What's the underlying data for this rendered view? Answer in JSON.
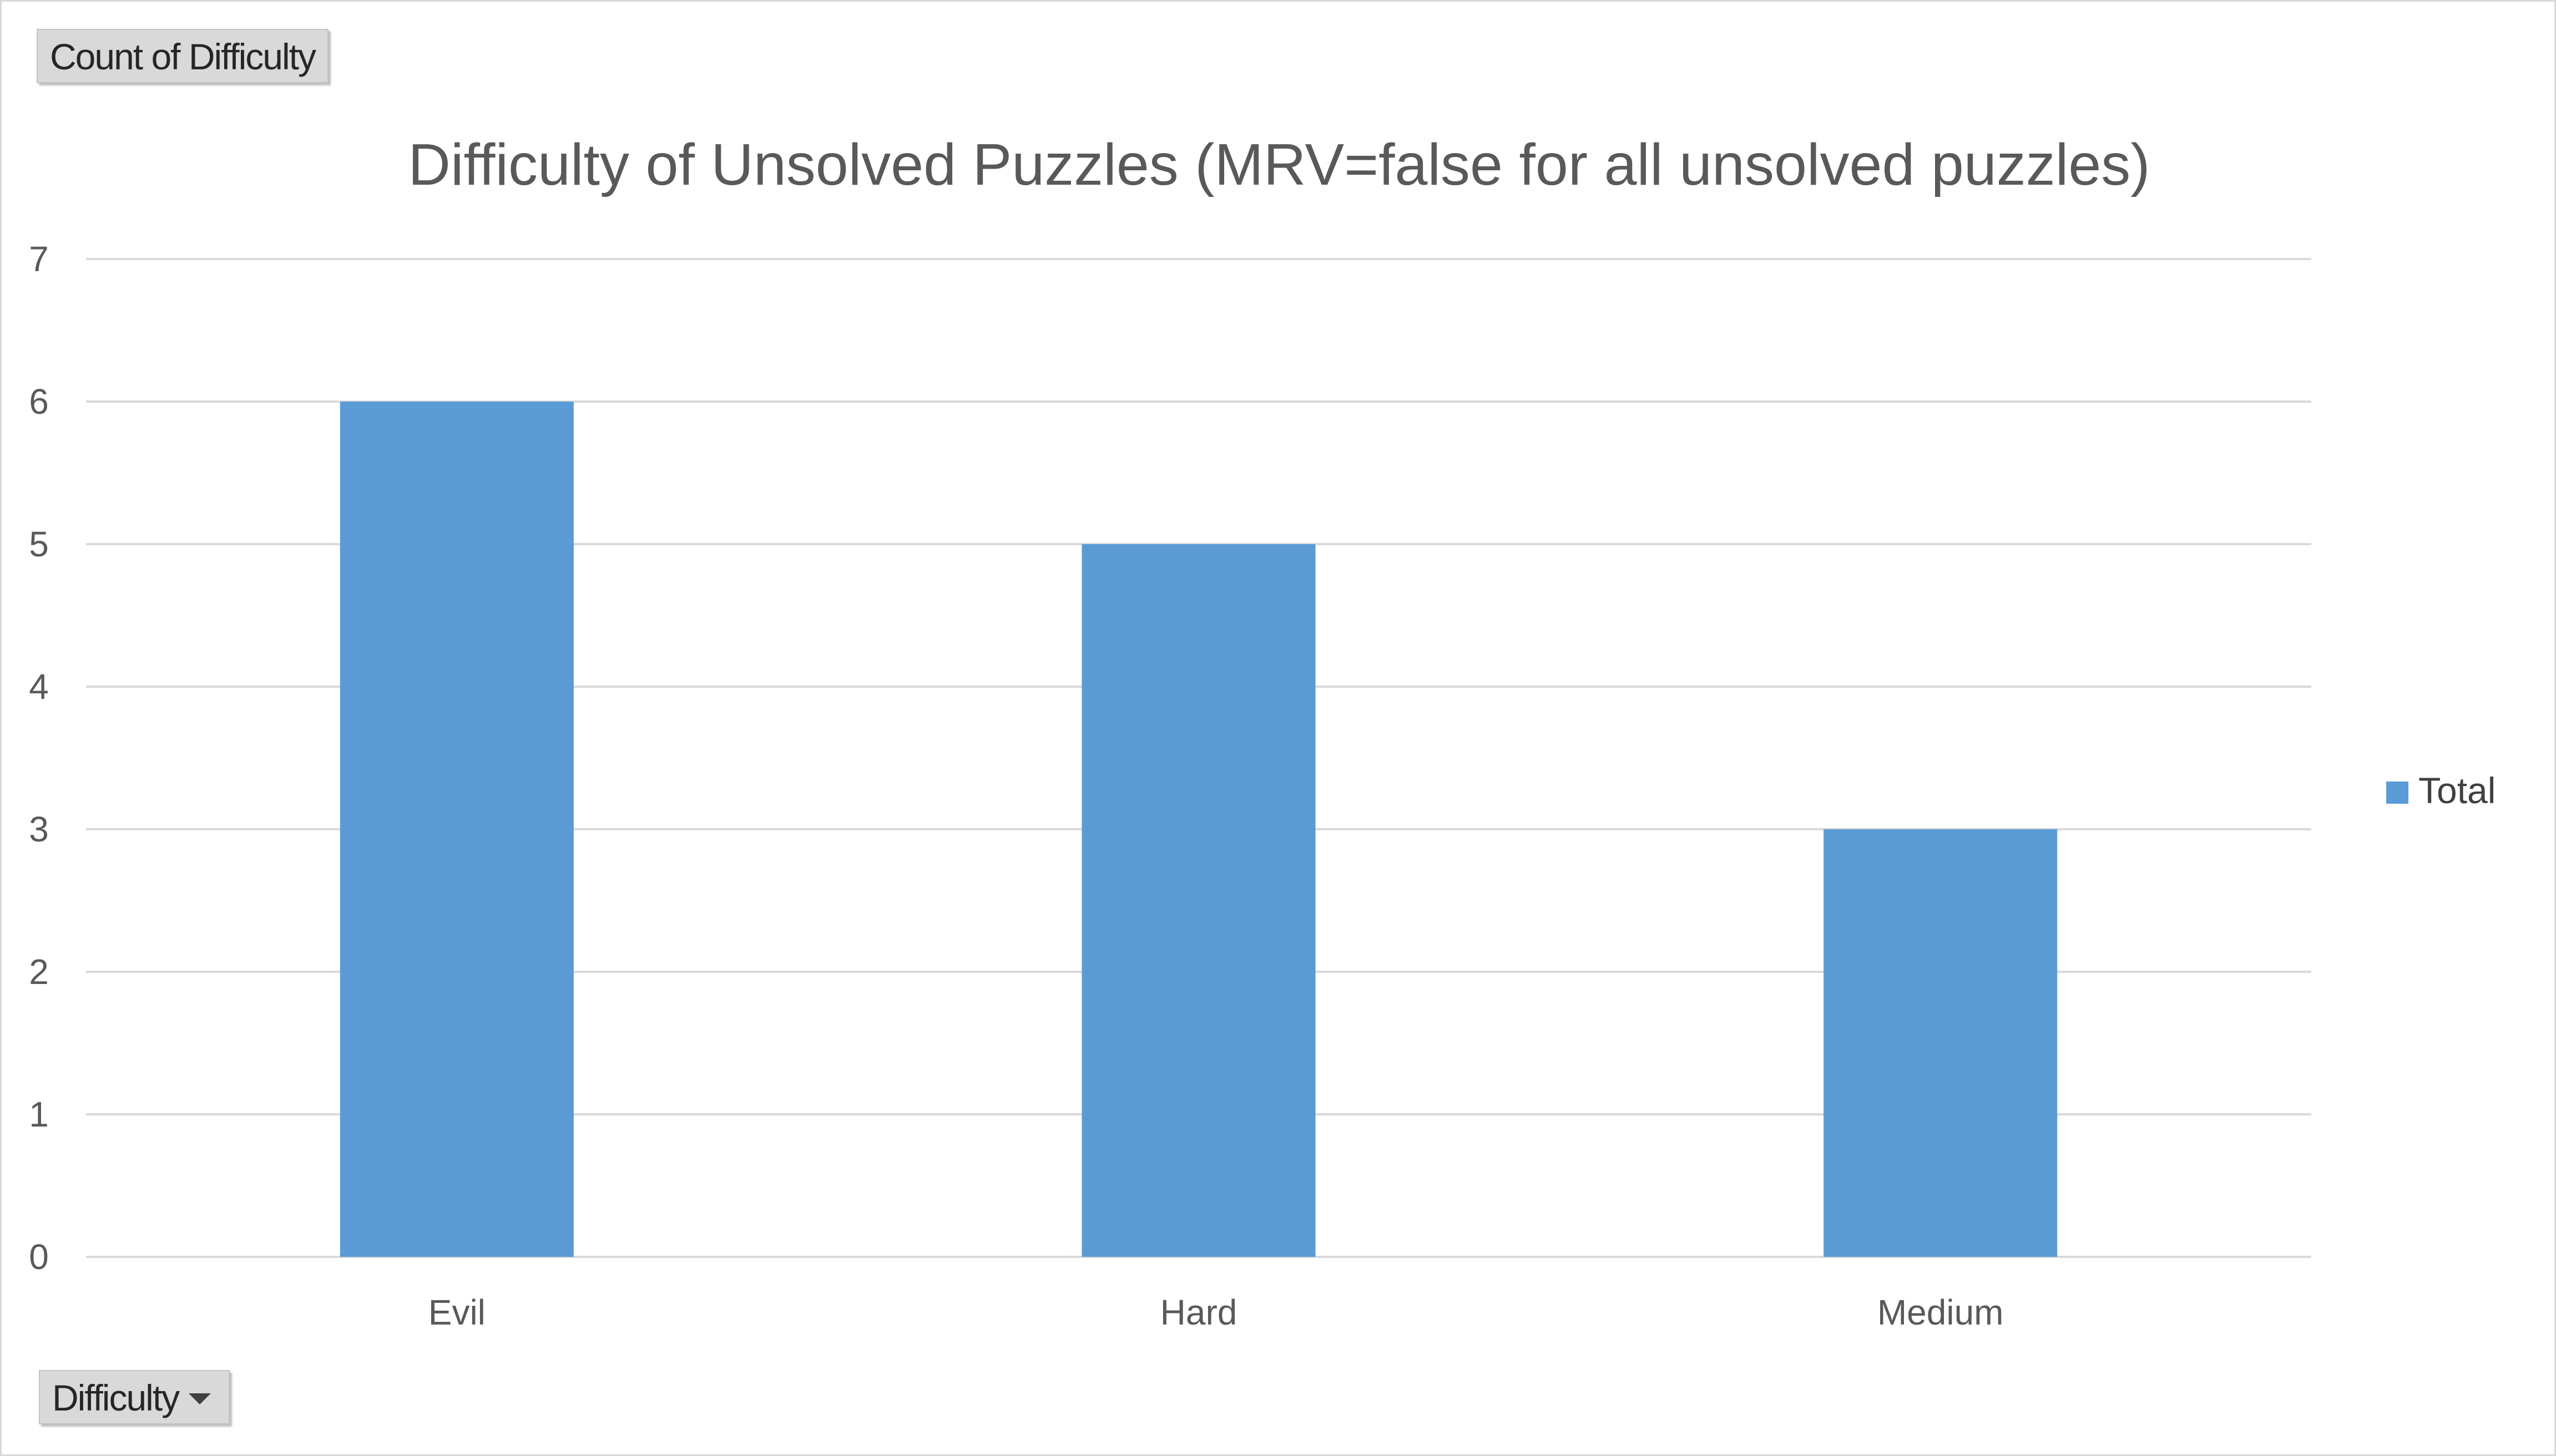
{
  "pivot": {
    "value_field_label": "Count of  Difficulty",
    "axis_field_label": "Difficulty"
  },
  "colors": {
    "bar": "#5b9bd5",
    "gridline": "#d9d9d9",
    "text": "#595959",
    "title": "#595959"
  },
  "chart_data": {
    "type": "bar",
    "title": "Difficulty of Unsolved Puzzles (MRV=false for all unsolved puzzles)",
    "xlabel": "",
    "ylabel": "",
    "categories": [
      "Evil",
      "Hard",
      "Medium"
    ],
    "series": [
      {
        "name": "Total",
        "values": [
          6,
          5,
          3
        ]
      }
    ],
    "ylim": [
      0,
      7
    ],
    "yticks": [
      "0",
      "1",
      "2",
      "3",
      "4",
      "5",
      "6",
      "7"
    ],
    "grid": true,
    "legend": "right"
  }
}
